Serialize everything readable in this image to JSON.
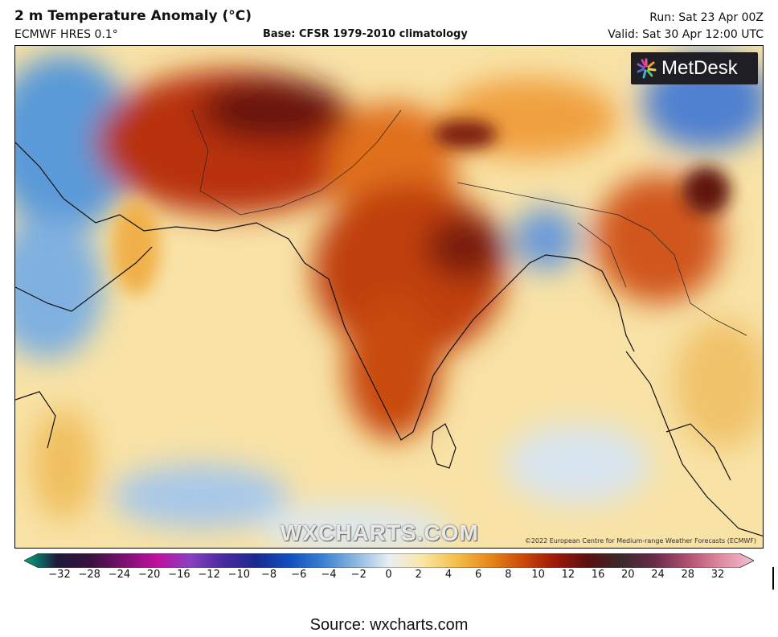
{
  "header": {
    "title": "2 m Temperature Anomaly (°C)",
    "model": "ECMWF HRES 0.1°",
    "base": "Base: CFSR 1979-2010 climatology",
    "run": "Run: Sat 23 Apr 00Z",
    "valid": "Valid: Sat 30 Apr 12:00 UTC"
  },
  "map": {
    "logo_text": "MetDesk",
    "watermark": "WXCHARTS.COM",
    "copyright": "©2022 European Centre for Medium-range Weather Forecasts (ECMWF)"
  },
  "colorbar": {
    "ticks": [
      "−32",
      "−28",
      "−24",
      "−20",
      "−16",
      "−12",
      "−10",
      "−8",
      "−6",
      "−4",
      "−2",
      "0",
      "2",
      "4",
      "6",
      "8",
      "10",
      "12",
      "16",
      "20",
      "24",
      "28",
      "32"
    ],
    "colors": [
      "#00a884",
      "#1e1a3a",
      "#3a1040",
      "#7a1070",
      "#c010a0",
      "#8a40c0",
      "#4a2aa0",
      "#1a2a90",
      "#1050c0",
      "#3a80d0",
      "#8ab8e0",
      "#e8eef4",
      "#fbe6a8",
      "#f5c04a",
      "#e88a1a",
      "#cc4a0a",
      "#a01808",
      "#5a1010",
      "#3a2a2a",
      "#6a2a4a",
      "#b05070",
      "#e08aa0",
      "#f4c0d0"
    ]
  },
  "source": "Source: wxcharts.com"
}
